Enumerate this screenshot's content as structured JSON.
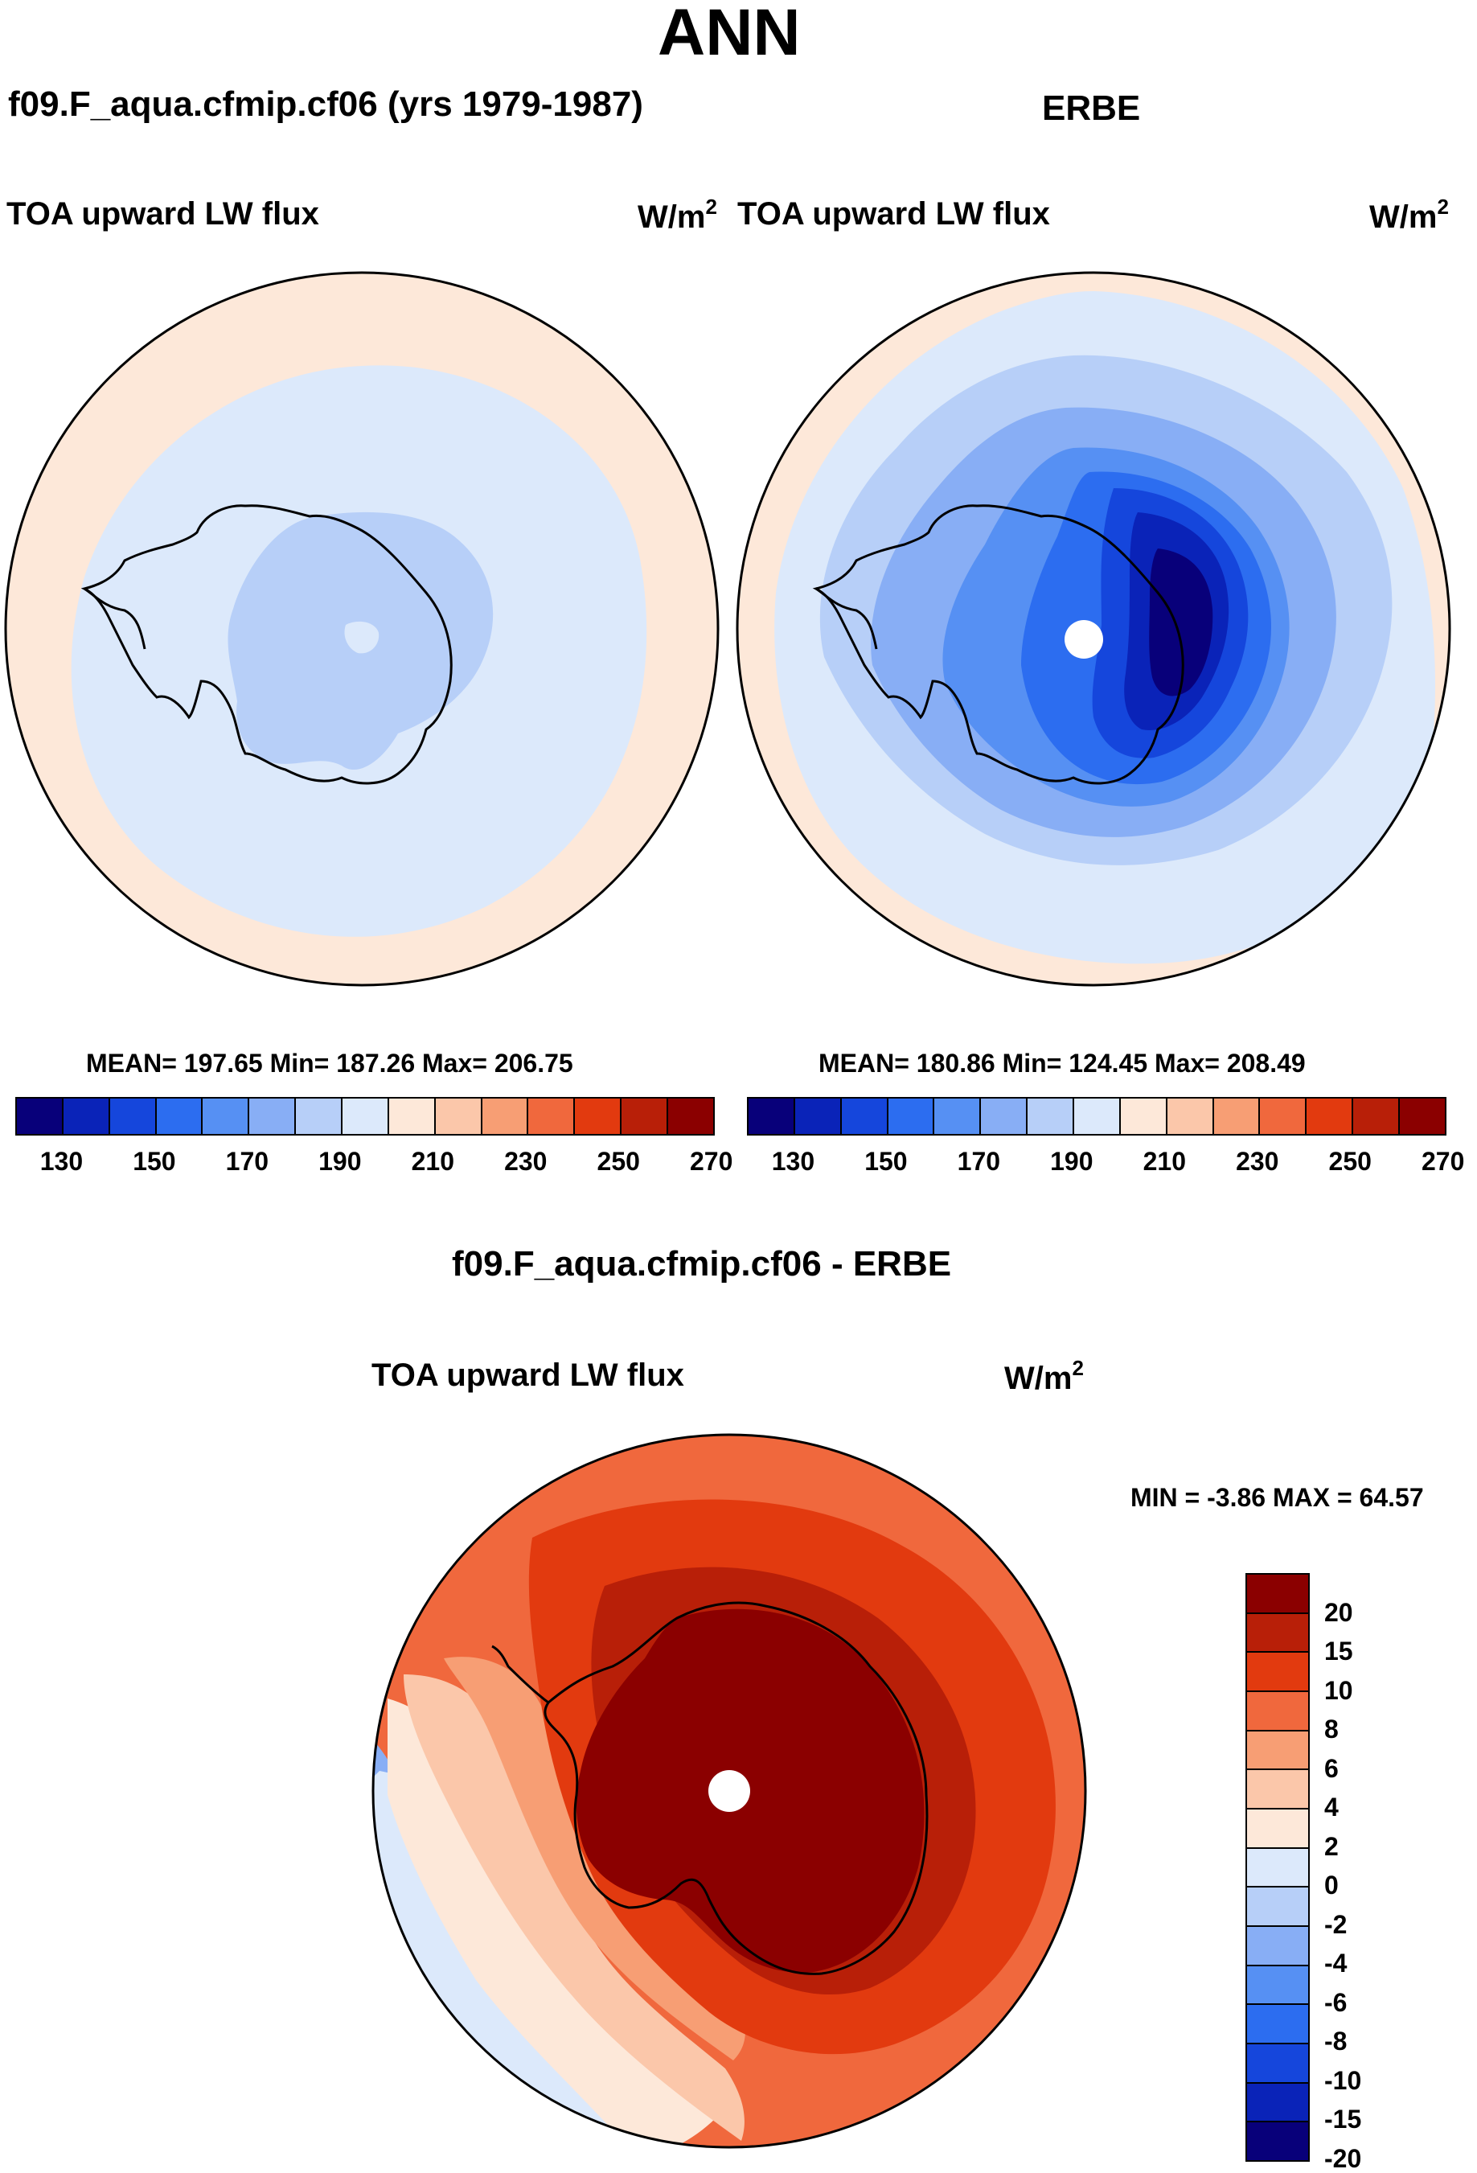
{
  "season": "ANN",
  "panel_left": {
    "case_title": "f09.F_aqua.cfmip.cf06 (yrs 1979-1987)",
    "variable": "TOA upward LW flux",
    "units_base": "W/m",
    "units_exp": "2",
    "stats": "MEAN= 197.65  Min= 187.26  Max= 206.75"
  },
  "panel_right": {
    "case_title": "ERBE",
    "variable": "TOA upward LW flux",
    "units_base": "W/m",
    "units_exp": "2",
    "stats": "MEAN= 180.86  Min= 124.45  Max= 208.49"
  },
  "panel_diff": {
    "case_title": "f09.F_aqua.cfmip.cf06 - ERBE",
    "variable": "TOA upward LW flux",
    "units_base": "W/m",
    "units_exp": "2",
    "minmax": "MIN =  -3.86 MAX =  64.57"
  },
  "abs_colorbar": {
    "colors": [
      "#08007a",
      "#0a23b8",
      "#1546dc",
      "#2c6df0",
      "#5690f3",
      "#88aef5",
      "#b7cff8",
      "#dce9fb",
      "#fde8d9",
      "#fbc7aa",
      "#f79e74",
      "#f0683d",
      "#e23a0f",
      "#b81f08",
      "#8b0000"
    ],
    "labels": [
      "130",
      "150",
      "170",
      "190",
      "210",
      "230",
      "250",
      "270"
    ]
  },
  "diff_colorbar": {
    "colors": [
      "#8b0000",
      "#b81f08",
      "#e23a0f",
      "#f0683d",
      "#f79e74",
      "#fbc7aa",
      "#fde8d9",
      "#dce9fb",
      "#b7cff8",
      "#88aef5",
      "#5690f3",
      "#2c6df0",
      "#1546dc",
      "#0a23b8",
      "#08007a"
    ],
    "labels": [
      "20",
      "15",
      "10",
      "8",
      "6",
      "4",
      "2",
      "0",
      "-2",
      "-4",
      "-6",
      "-8",
      "-10",
      "-15",
      "-20"
    ]
  }
}
